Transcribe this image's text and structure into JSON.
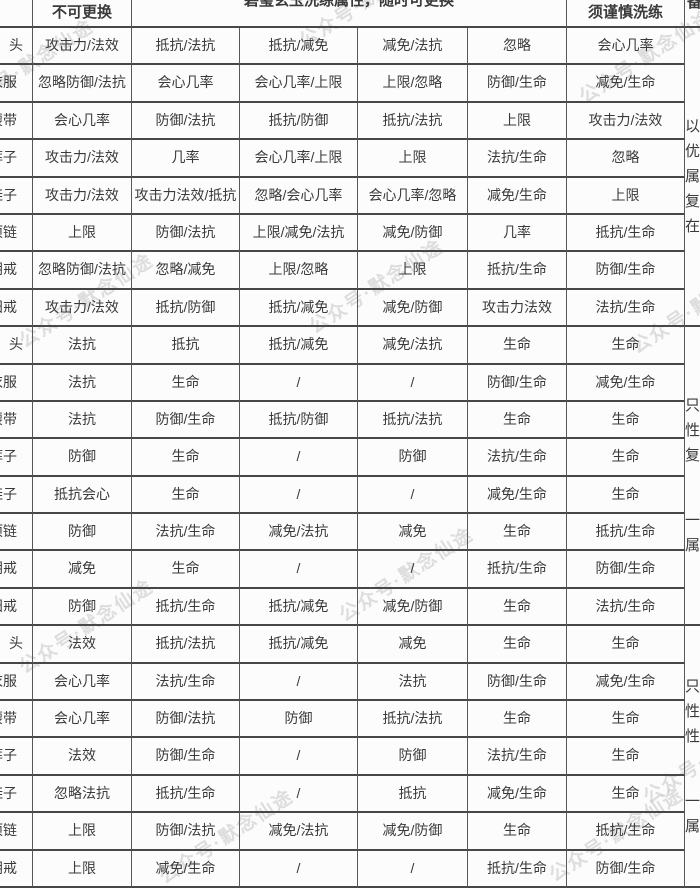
{
  "header": {
    "col_fixed": "不可更换",
    "col_wash": "碧玺玄玉洗练属性，随时可更换",
    "col_caution": "须谨慎洗练",
    "col_note_fragment": "备"
  },
  "equipment_rows": [
    {
      "label_prefix": "",
      "label": "头",
      "cells": [
        "攻击力/法效",
        "抵抗/法抗",
        "抵抗/减免",
        "减免/法抗",
        "忽略",
        "会心几率"
      ]
    },
    {
      "label_prefix": "衣",
      "label": "服",
      "cells": [
        "忽略防御/法抗",
        "会心几率",
        "会心几率/上限",
        "上限/忽略",
        "防御/生命",
        "减免/生命"
      ]
    },
    {
      "label_prefix": "腰",
      "label": "带",
      "cells": [
        "会心几率",
        "防御/法抗",
        "抵抗/防御",
        "抵抗/法抗",
        "上限",
        "攻击力/法效"
      ]
    },
    {
      "label_prefix": "裤",
      "label": "子",
      "cells": [
        "攻击力/法效",
        "几率",
        "会心几率/上限",
        "上限",
        "法抗/生命",
        "忽略"
      ]
    },
    {
      "label_prefix": "鞋",
      "label": "子",
      "cells": [
        "攻击力/法效",
        "攻击力法效/抵抗",
        "忽略/会心几率",
        "会心几率/忽略",
        "减免/生命",
        "上限"
      ]
    },
    {
      "label_prefix": "项",
      "label": "链",
      "cells": [
        "上限",
        "防御/法抗",
        "上限/减免/法抗",
        "减免/防御",
        "几率",
        "抵抗/生命"
      ]
    },
    {
      "label_prefix": "阴",
      "label": "戒",
      "cells": [
        "忽略防御/法抗",
        "忽略/减免",
        "上限/忽略",
        "上限",
        "抵抗/生命",
        "防御/生命"
      ]
    },
    {
      "label_prefix": "阳",
      "label": "戒",
      "cells": [
        "攻击力/法效",
        "抵抗/防御",
        "抵抗/减免",
        "减免/防御",
        "攻击力法效",
        "法抗/生命"
      ]
    },
    {
      "label_prefix": "",
      "label": "头",
      "cells": [
        "法抗",
        "抵抗",
        "抵抗/减免",
        "减免/法抗",
        "生命",
        "生命"
      ]
    },
    {
      "label_prefix": "衣",
      "label": "服",
      "cells": [
        "法抗",
        "生命",
        "/",
        "/",
        "防御/生命",
        "减免/生命"
      ]
    },
    {
      "label_prefix": "腰",
      "label": "带",
      "cells": [
        "法抗",
        "防御/生命",
        "抵抗/防御",
        "抵抗/法抗",
        "生命",
        "生命"
      ]
    },
    {
      "label_prefix": "裤",
      "label": "子",
      "cells": [
        "防御",
        "生命",
        "/",
        "防御",
        "法抗/生命",
        "生命"
      ]
    },
    {
      "label_prefix": "鞋",
      "label": "子",
      "cells": [
        "抵抗会心",
        "生命",
        "/",
        "/",
        "减免/生命",
        "生命"
      ]
    },
    {
      "label_prefix": "项",
      "label": "链",
      "cells": [
        "防御",
        "法抗/生命",
        "减免/法抗",
        "减免",
        "生命",
        "抵抗/生命"
      ]
    },
    {
      "label_prefix": "阴",
      "label": "戒",
      "cells": [
        "减免",
        "生命",
        "/",
        "/",
        "抵抗/生命",
        "防御/生命"
      ]
    },
    {
      "label_prefix": "阳",
      "label": "戒",
      "cells": [
        "防御",
        "抵抗/生命",
        "抵抗/减免",
        "减免/防御",
        "生命",
        "法抗/生命"
      ]
    },
    {
      "label_prefix": "",
      "label": "头",
      "cells": [
        "法效",
        "抵抗/法抗",
        "抵抗/减免",
        "减免",
        "生命",
        "生命"
      ]
    },
    {
      "label_prefix": "衣",
      "label": "服",
      "cells": [
        "会心几率",
        "法抗/生命",
        "/",
        "法抗",
        "防御/生命",
        "减免/生命"
      ]
    },
    {
      "label_prefix": "腰",
      "label": "带",
      "cells": [
        "会心几率",
        "防御/法抗",
        "防御",
        "抵抗/法抗",
        "生命",
        "生命"
      ]
    },
    {
      "label_prefix": "裤",
      "label": "子",
      "cells": [
        "法效",
        "防御/生命",
        "/",
        "防御",
        "法抗/生命",
        "生命"
      ]
    },
    {
      "label_prefix": "鞋",
      "label": "子",
      "cells": [
        "忽略法抗",
        "抵抗/生命",
        "/",
        "抵抗",
        "减免/生命",
        "生命"
      ]
    },
    {
      "label_prefix": "项",
      "label": "链",
      "cells": [
        "上限",
        "防御/法抗",
        "减免/法抗",
        "减免/防御",
        "生命",
        "抵抗/生命"
      ]
    },
    {
      "label_prefix": "阴",
      "label": "戒",
      "cells": [
        "上限",
        "减免/生命",
        "/",
        "/",
        "抵抗/生命",
        "防御/生命"
      ]
    }
  ],
  "notes": [
    {
      "span": 8,
      "groups": [
        [
          "以",
          "优",
          "属",
          "复",
          "在"
        ]
      ]
    },
    {
      "span": 8,
      "groups": [
        [
          "只",
          "性",
          "复"
        ],
        [
          "一",
          "属"
        ]
      ]
    },
    {
      "span": 7,
      "groups": [
        [
          "只",
          "性",
          "性"
        ],
        [
          "一",
          "属"
        ]
      ]
    }
  ],
  "watermark": {
    "text": "公众号·默念仙途"
  },
  "colors": {
    "text": "#3a3a3a",
    "border_h": "#474747",
    "border_v": "#585858",
    "background": "#fcfcfc"
  }
}
